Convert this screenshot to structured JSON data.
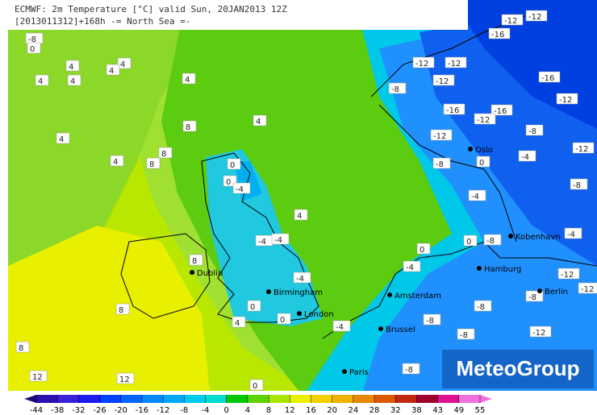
{
  "header": {
    "line1": "ECMWF: 2m Temperature [°C] valid Sun, 20JAN2013 12Z",
    "line2": "[2013011312]+168h  -= North Sea =-"
  },
  "isotherm_labels": [
    "-8",
    "0",
    "4",
    "4",
    "4",
    "4",
    "4",
    "4",
    "8",
    "4",
    "4",
    "8",
    "8",
    "4",
    "0",
    "0",
    "-4",
    "4",
    "-4",
    "-4",
    "8",
    "-4",
    "0",
    "4",
    "0",
    "-4",
    "8",
    "8",
    "12",
    "12",
    "0",
    "0",
    "-4",
    "-8",
    "-8",
    "-8",
    "-8",
    "-8",
    "-12",
    "-12",
    "-12",
    "-8",
    "0",
    "-4",
    "-4",
    "-8",
    "-12",
    "-12",
    "-12",
    "-12",
    "-8",
    "-16",
    "-12",
    "-12",
    "-16",
    "-12",
    "-16",
    "-16",
    "-12",
    "-8",
    "-12",
    "-8",
    "0",
    "-4"
  ],
  "cities": [
    "Dublin",
    "Birmingham",
    "London",
    "Amsterdam",
    "Brussel",
    "Paris",
    "Hamburg",
    "Kobenhavn",
    "Oslo",
    "Berlin"
  ],
  "legend": {
    "ticks": [
      -44,
      -38,
      -32,
      -26,
      -20,
      -16,
      -12,
      -8,
      -4,
      0,
      4,
      8,
      12,
      16,
      20,
      24,
      28,
      32,
      38,
      43,
      49,
      55
    ],
    "colors": [
      "#1a0a7a",
      "#2a10b0",
      "#3a20d8",
      "#1c1cf0",
      "#0040ff",
      "#0064ff",
      "#0088ff",
      "#00a8ff",
      "#00ccf0",
      "#00dcd0",
      "#00c800",
      "#5cd400",
      "#a8e400",
      "#e8f000",
      "#f4d000",
      "#f0b000",
      "#e88800",
      "#d85800",
      "#c02810",
      "#a00030",
      "#e01090",
      "#f070e0"
    ]
  },
  "logo": "MeteoGroup"
}
